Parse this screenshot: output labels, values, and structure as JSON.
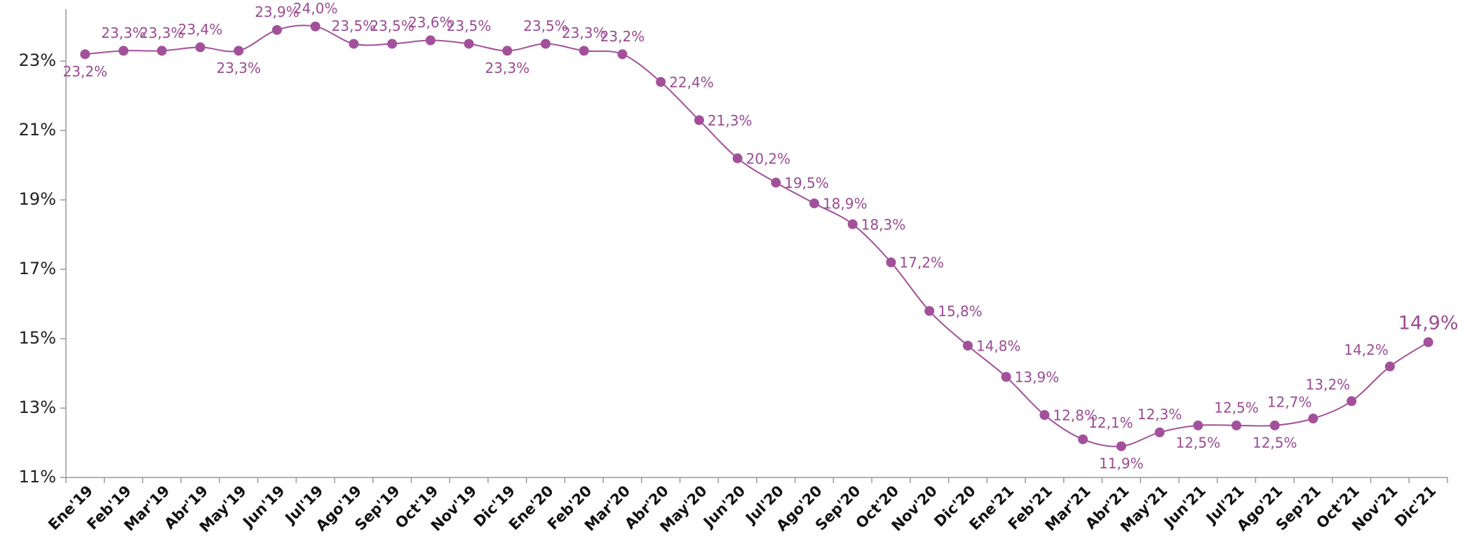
{
  "chart_data": {
    "type": "line",
    "categories": [
      "Ene'19",
      "Feb'19",
      "Mar'19",
      "Abr'19",
      "May'19",
      "Jun'19",
      "Jul'19",
      "Ago'19",
      "Sep'19",
      "Oct'19",
      "Nov'19",
      "Dic'19",
      "Ene'20",
      "Feb'20",
      "Mar'20",
      "Abr'20",
      "May'20",
      "Jun'20",
      "Jul'20",
      "Ago'20",
      "Sep'20",
      "Oct'20",
      "Nov'20",
      "Dic'20",
      "Ene'21",
      "Feb'21",
      "Mar'21",
      "Abr'21",
      "May'21",
      "Jun'21",
      "Jul'21",
      "Ago'21",
      "Sep'21",
      "Oct'21",
      "Nov'21",
      "Dic'21"
    ],
    "values": [
      23.2,
      23.3,
      23.3,
      23.4,
      23.3,
      23.9,
      24.0,
      23.5,
      23.5,
      23.6,
      23.5,
      23.3,
      23.5,
      23.3,
      23.2,
      22.4,
      21.3,
      20.2,
      19.5,
      18.9,
      18.3,
      17.2,
      15.8,
      14.8,
      13.9,
      12.8,
      12.1,
      11.9,
      12.3,
      12.5,
      12.5,
      12.5,
      12.7,
      13.2,
      14.2,
      14.9
    ],
    "value_labels": [
      "23,2%",
      "23,3%",
      "23,3%",
      "23,4%",
      "23,3%",
      "23,9%",
      "24,0%",
      "23,5%",
      "23,5%",
      "23,6%",
      "23,5%",
      "23,3%",
      "23,5%",
      "23,3%",
      "23,2%",
      "22,4%",
      "21,3%",
      "20,2%",
      "19,5%",
      "18,9%",
      "18,3%",
      "17,2%",
      "15,8%",
      "14,8%",
      "13,9%",
      "12,8%",
      "12,1%",
      "11,9%",
      "12,3%",
      "12,5%",
      "12,5%",
      "12,5%",
      "12,7%",
      "13,2%",
      "14,2%",
      "14,9%"
    ],
    "color": "#a3509b",
    "ylim": [
      11,
      24.5
    ],
    "yticks": [
      {
        "value": 11,
        "label": "11%"
      },
      {
        "value": 13,
        "label": "13%"
      },
      {
        "value": 15,
        "label": "15%"
      },
      {
        "value": 17,
        "label": "17%"
      },
      {
        "value": 19,
        "label": "19%"
      },
      {
        "value": 21,
        "label": "21%"
      },
      {
        "value": 23,
        "label": "23%"
      }
    ],
    "grid": false
  }
}
